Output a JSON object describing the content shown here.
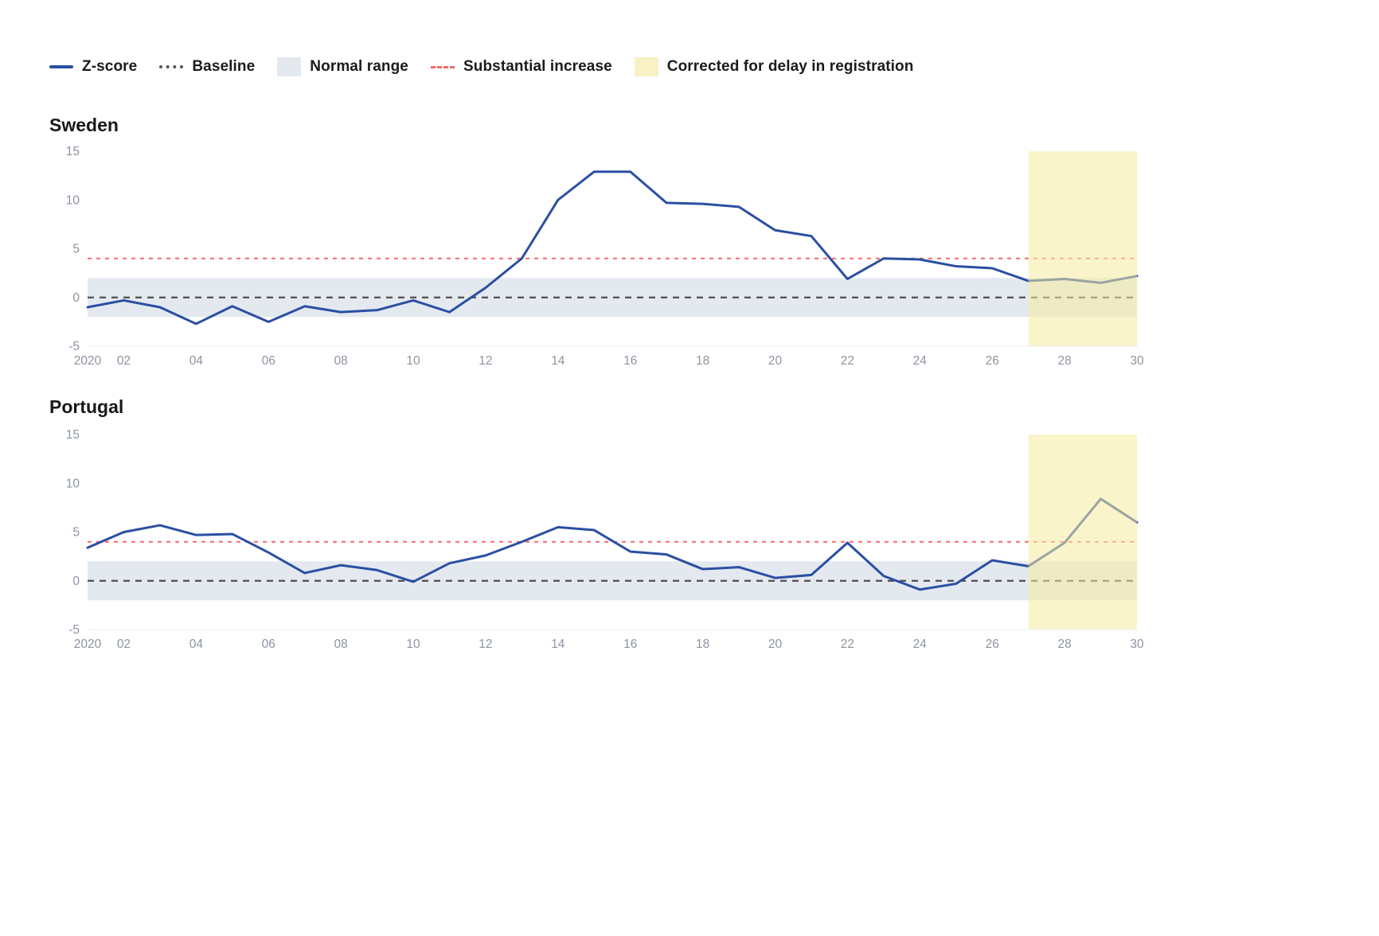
{
  "legend": {
    "items": [
      {
        "label": "Z-score",
        "type": "line-solid",
        "color": "#2a4fa2"
      },
      {
        "label": "Baseline",
        "type": "line-dotted",
        "color": "#565656"
      },
      {
        "label": "Normal range",
        "type": "box",
        "color": "#e4e9ef"
      },
      {
        "label": "Substantial increase",
        "type": "line-dashed",
        "color": "#f5696d"
      },
      {
        "label": "Corrected for delay in registration",
        "type": "box",
        "color": "#f8f1c6"
      }
    ]
  },
  "chart_data": [
    {
      "type": "line",
      "title": "Sweden",
      "x": [
        1,
        2,
        3,
        4,
        5,
        6,
        7,
        8,
        9,
        10,
        11,
        12,
        13,
        14,
        15,
        16,
        17,
        18,
        19,
        20,
        21,
        22,
        23,
        24,
        25,
        26,
        27,
        28,
        29,
        30
      ],
      "series": [
        {
          "name": "Z-score",
          "color": "#2a4fa2",
          "values": [
            -1.0,
            -0.3,
            -1.0,
            -2.7,
            -0.9,
            -2.5,
            -0.9,
            -1.5,
            -1.3,
            -0.3,
            -1.5,
            1.0,
            4.0,
            10.0,
            12.9,
            12.9,
            9.7,
            9.6,
            9.3,
            6.9,
            6.3,
            1.9,
            4.0,
            3.9,
            3.2,
            3.0,
            1.7,
            1.9,
            1.5,
            2.2
          ]
        }
      ],
      "baseline": 0,
      "substantial_increase_level": 4,
      "normal_range": [
        -2,
        2
      ],
      "corrected_region_x": [
        27,
        30
      ],
      "ylim": [
        -5,
        15
      ],
      "yticks": [
        15,
        10,
        5,
        0,
        -5
      ],
      "xtick_positions": [
        1,
        2,
        4,
        6,
        8,
        10,
        12,
        14,
        16,
        18,
        20,
        22,
        24,
        26,
        28,
        30
      ],
      "xtick_labels": [
        "2020",
        "02",
        "04",
        "06",
        "08",
        "10",
        "12",
        "14",
        "16",
        "18",
        "20",
        "22",
        "24",
        "26",
        "28",
        "30"
      ],
      "grid": "off",
      "colors": {
        "normal_range": "#e4e9ef",
        "baseline": "#4e4e4e",
        "substantial": "#f5696d",
        "corrected_overlay": "rgba(246,235,160,0.55)"
      }
    },
    {
      "type": "line",
      "title": "Portugal",
      "x": [
        1,
        2,
        3,
        4,
        5,
        6,
        7,
        8,
        9,
        10,
        11,
        12,
        13,
        14,
        15,
        16,
        17,
        18,
        19,
        20,
        21,
        22,
        23,
        24,
        25,
        26,
        27,
        28,
        29,
        30
      ],
      "series": [
        {
          "name": "Z-score",
          "color": "#2a4fa2",
          "values": [
            3.4,
            5.0,
            5.7,
            4.7,
            4.8,
            2.9,
            0.8,
            1.6,
            1.1,
            -0.1,
            1.8,
            2.6,
            4.0,
            5.5,
            5.2,
            3.0,
            2.7,
            1.2,
            1.4,
            0.3,
            0.6,
            3.9,
            0.5,
            -0.9,
            -0.3,
            2.1,
            1.5,
            3.9,
            8.4,
            6.0
          ]
        }
      ],
      "baseline": 0,
      "substantial_increase_level": 4,
      "normal_range": [
        -2,
        2
      ],
      "corrected_region_x": [
        27,
        30
      ],
      "ylim": [
        -5,
        15
      ],
      "yticks": [
        15,
        10,
        5,
        0,
        -5
      ],
      "xtick_positions": [
        1,
        2,
        4,
        6,
        8,
        10,
        12,
        14,
        16,
        18,
        20,
        22,
        24,
        26,
        28,
        30
      ],
      "xtick_labels": [
        "2020",
        "02",
        "04",
        "06",
        "08",
        "10",
        "12",
        "14",
        "16",
        "18",
        "20",
        "22",
        "24",
        "26",
        "28",
        "30"
      ],
      "grid": "off",
      "colors": {
        "normal_range": "#e4e9ef",
        "baseline": "#4e4e4e",
        "substantial": "#f5696d",
        "corrected_overlay": "rgba(246,235,160,0.55)"
      }
    }
  ]
}
